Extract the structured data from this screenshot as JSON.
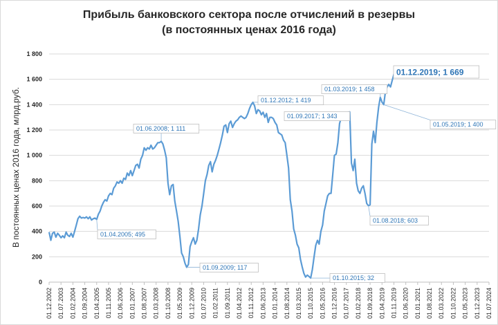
{
  "chart_data": {
    "type": "line",
    "title": [
      "Прибыль банковского сектора после отчислений в резервы",
      "(в постоянных ценах 2016 года)"
    ],
    "xlabel": "",
    "ylabel": "В постоянных ценах 2016 года, млрд.руб.",
    "ylim": [
      0,
      1800
    ],
    "yticks": [
      "0",
      "200",
      "400",
      "600",
      "800",
      "1 000",
      "1 200",
      "1 400",
      "1 600",
      "1 800"
    ],
    "grid": true,
    "color": "#5b9bd5",
    "xticks": [
      "01.12.2002",
      "01.07.2003",
      "01.02.2004",
      "01.09.2004",
      "01.04.2005",
      "01.11.2005",
      "01.06.2006",
      "01.01.2007",
      "01.08.2007",
      "01.03.2008",
      "01.10.2008",
      "01.05.2009",
      "01.12.2009",
      "01.07.2010",
      "01.02.2011",
      "01.09.2011",
      "01.04.2012",
      "01.11.2012",
      "01.06.2013",
      "01.01.2014",
      "01.08.2014",
      "01.03.2015",
      "01.10.2015",
      "01.05.2016",
      "01.12.2016",
      "01.07.2017",
      "01.02.2018",
      "01.09.2018",
      "01.04.2019",
      "01.11.2019",
      "01.06.2020",
      "01.01.2021",
      "01.08.2021",
      "01.03.2022",
      "01.10.2022",
      "01.05.2023",
      "01.12.2023",
      "01.07.2024"
    ],
    "series": [
      {
        "points": [
          [
            "2002-12",
            395
          ],
          [
            "2003-01",
            330
          ],
          [
            "2003-02",
            385
          ],
          [
            "2003-03",
            395
          ],
          [
            "2003-04",
            355
          ],
          [
            "2003-05",
            385
          ],
          [
            "2003-06",
            370
          ],
          [
            "2003-07",
            350
          ],
          [
            "2003-08",
            365
          ],
          [
            "2003-09",
            350
          ],
          [
            "2003-10",
            395
          ],
          [
            "2003-11",
            370
          ],
          [
            "2003-12",
            360
          ],
          [
            "2004-01",
            385
          ],
          [
            "2004-02",
            355
          ],
          [
            "2004-03",
            400
          ],
          [
            "2004-04",
            450
          ],
          [
            "2004-05",
            500
          ],
          [
            "2004-06",
            520
          ],
          [
            "2004-07",
            505
          ],
          [
            "2004-08",
            510
          ],
          [
            "2004-09",
            505
          ],
          [
            "2004-10",
            515
          ],
          [
            "2004-11",
            500
          ],
          [
            "2004-12",
            515
          ],
          [
            "2005-01",
            490
          ],
          [
            "2005-02",
            500
          ],
          [
            "2005-03",
            505
          ],
          [
            "2005-04",
            495
          ],
          [
            "2005-05",
            535
          ],
          [
            "2005-06",
            560
          ],
          [
            "2005-07",
            600
          ],
          [
            "2005-08",
            630
          ],
          [
            "2005-09",
            650
          ],
          [
            "2005-10",
            640
          ],
          [
            "2005-11",
            680
          ],
          [
            "2005-12",
            700
          ],
          [
            "2006-01",
            690
          ],
          [
            "2006-02",
            740
          ],
          [
            "2006-03",
            760
          ],
          [
            "2006-04",
            790
          ],
          [
            "2006-05",
            780
          ],
          [
            "2006-06",
            800
          ],
          [
            "2006-07",
            780
          ],
          [
            "2006-08",
            820
          ],
          [
            "2006-09",
            810
          ],
          [
            "2006-10",
            860
          ],
          [
            "2006-11",
            840
          ],
          [
            "2006-12",
            880
          ],
          [
            "2007-01",
            840
          ],
          [
            "2007-02",
            880
          ],
          [
            "2007-03",
            920
          ],
          [
            "2007-04",
            930
          ],
          [
            "2007-05",
            900
          ],
          [
            "2007-06",
            970
          ],
          [
            "2007-07",
            1000
          ],
          [
            "2007-08",
            1060
          ],
          [
            "2007-09",
            1040
          ],
          [
            "2007-10",
            1060
          ],
          [
            "2007-11",
            1050
          ],
          [
            "2007-12",
            1080
          ],
          [
            "2008-01",
            1050
          ],
          [
            "2008-02",
            1060
          ],
          [
            "2008-03",
            1080
          ],
          [
            "2008-04",
            1100
          ],
          [
            "2008-05",
            1100
          ],
          [
            "2008-06",
            1111
          ],
          [
            "2008-07",
            1090
          ],
          [
            "2008-08",
            1040
          ],
          [
            "2008-09",
            980
          ],
          [
            "2008-10",
            780
          ],
          [
            "2008-11",
            690
          ],
          [
            "2008-12",
            760
          ],
          [
            "2009-01",
            770
          ],
          [
            "2009-02",
            640
          ],
          [
            "2009-03",
            560
          ],
          [
            "2009-04",
            480
          ],
          [
            "2009-05",
            360
          ],
          [
            "2009-06",
            230
          ],
          [
            "2009-07",
            200
          ],
          [
            "2009-08",
            150
          ],
          [
            "2009-09",
            117
          ],
          [
            "2009-10",
            140
          ],
          [
            "2009-11",
            280
          ],
          [
            "2009-12",
            320
          ],
          [
            "2010-01",
            350
          ],
          [
            "2010-02",
            300
          ],
          [
            "2010-03",
            330
          ],
          [
            "2010-04",
            420
          ],
          [
            "2010-05",
            530
          ],
          [
            "2010-06",
            600
          ],
          [
            "2010-07",
            700
          ],
          [
            "2010-08",
            800
          ],
          [
            "2010-09",
            850
          ],
          [
            "2010-10",
            920
          ],
          [
            "2010-11",
            950
          ],
          [
            "2010-12",
            870
          ],
          [
            "2011-01",
            930
          ],
          [
            "2011-02",
            960
          ],
          [
            "2011-03",
            1000
          ],
          [
            "2011-04",
            1050
          ],
          [
            "2011-05",
            1100
          ],
          [
            "2011-06",
            1160
          ],
          [
            "2011-07",
            1230
          ],
          [
            "2011-08",
            1240
          ],
          [
            "2011-09",
            1180
          ],
          [
            "2011-10",
            1250
          ],
          [
            "2011-11",
            1270
          ],
          [
            "2011-12",
            1220
          ],
          [
            "2012-01",
            1250
          ],
          [
            "2012-02",
            1270
          ],
          [
            "2012-03",
            1280
          ],
          [
            "2012-04",
            1300
          ],
          [
            "2012-05",
            1310
          ],
          [
            "2012-06",
            1300
          ],
          [
            "2012-07",
            1290
          ],
          [
            "2012-08",
            1300
          ],
          [
            "2012-09",
            1330
          ],
          [
            "2012-10",
            1370
          ],
          [
            "2012-11",
            1400
          ],
          [
            "2012-12",
            1419
          ],
          [
            "2013-01",
            1390
          ],
          [
            "2013-02",
            1330
          ],
          [
            "2013-03",
            1360
          ],
          [
            "2013-04",
            1350
          ],
          [
            "2013-05",
            1320
          ],
          [
            "2013-06",
            1340
          ],
          [
            "2013-07",
            1300
          ],
          [
            "2013-08",
            1330
          ],
          [
            "2013-09",
            1260
          ],
          [
            "2013-10",
            1300
          ],
          [
            "2013-11",
            1300
          ],
          [
            "2013-12",
            1290
          ],
          [
            "2014-01",
            1260
          ],
          [
            "2014-02",
            1240
          ],
          [
            "2014-03",
            1180
          ],
          [
            "2014-04",
            1170
          ],
          [
            "2014-05",
            1160
          ],
          [
            "2014-06",
            1120
          ],
          [
            "2014-07",
            1100
          ],
          [
            "2014-08",
            1000
          ],
          [
            "2014-09",
            900
          ],
          [
            "2014-10",
            650
          ],
          [
            "2014-11",
            560
          ],
          [
            "2014-12",
            420
          ],
          [
            "2015-01",
            370
          ],
          [
            "2015-02",
            300
          ],
          [
            "2015-03",
            270
          ],
          [
            "2015-04",
            180
          ],
          [
            "2015-05",
            120
          ],
          [
            "2015-06",
            70
          ],
          [
            "2015-07",
            40
          ],
          [
            "2015-08",
            55
          ],
          [
            "2015-09",
            45
          ],
          [
            "2015-10",
            32
          ],
          [
            "2015-11",
            100
          ],
          [
            "2015-12",
            200
          ],
          [
            "2016-01",
            290
          ],
          [
            "2016-02",
            330
          ],
          [
            "2016-03",
            300
          ],
          [
            "2016-04",
            400
          ],
          [
            "2016-05",
            450
          ],
          [
            "2016-06",
            560
          ],
          [
            "2016-07",
            620
          ],
          [
            "2016-08",
            680
          ],
          [
            "2016-09",
            700
          ],
          [
            "2016-10",
            700
          ],
          [
            "2016-11",
            850
          ],
          [
            "2016-12",
            1000
          ],
          [
            "2017-01",
            1010
          ],
          [
            "2017-02",
            1100
          ],
          [
            "2017-03",
            1250
          ],
          [
            "2017-04",
            1300
          ],
          [
            "2017-05",
            1280
          ],
          [
            "2017-06",
            1330
          ],
          [
            "2017-07",
            1300
          ],
          [
            "2017-08",
            1340
          ],
          [
            "2017-09",
            1343
          ],
          [
            "2017-10",
            940
          ],
          [
            "2017-11",
            880
          ],
          [
            "2017-12",
            970
          ],
          [
            "2018-01",
            780
          ],
          [
            "2018-02",
            720
          ],
          [
            "2018-03",
            700
          ],
          [
            "2018-04",
            740
          ],
          [
            "2018-05",
            760
          ],
          [
            "2018-06",
            700
          ],
          [
            "2018-07",
            620
          ],
          [
            "2018-08",
            603
          ],
          [
            "2018-09",
            610
          ],
          [
            "2018-10",
            1090
          ],
          [
            "2018-11",
            1190
          ],
          [
            "2018-12",
            1100
          ],
          [
            "2019-01",
            1260
          ],
          [
            "2019-02",
            1380
          ],
          [
            "2019-03",
            1458
          ],
          [
            "2019-04",
            1420
          ],
          [
            "2019-05",
            1400
          ],
          [
            "2019-06",
            1500
          ],
          [
            "2019-07",
            1540
          ],
          [
            "2019-08",
            1560
          ],
          [
            "2019-09",
            1540
          ],
          [
            "2019-10",
            1590
          ],
          [
            "2019-11",
            1640
          ],
          [
            "2019-12",
            1669
          ]
        ]
      }
    ],
    "annotations": [
      {
        "text": "01.04.2005; 495",
        "date": "2005-04",
        "value": 495
      },
      {
        "text": "01.06.2008; 1 111",
        "date": "2008-06",
        "value": 1111
      },
      {
        "text": "01.09.2009; 117",
        "date": "2009-09",
        "value": 117
      },
      {
        "text": "01.12.2012; 1 419",
        "date": "2012-12",
        "value": 1419
      },
      {
        "text": "01.10.2015; 32",
        "date": "2015-10",
        "value": 32
      },
      {
        "text": "01.09.2017; 1 343",
        "date": "2017-09",
        "value": 1343
      },
      {
        "text": "01.08.2018; 603",
        "date": "2018-08",
        "value": 603
      },
      {
        "text": "01.03.2019; 1 458",
        "date": "2019-03",
        "value": 1458
      },
      {
        "text": "01.05.2019; 1 400",
        "date": "2019-05",
        "value": 1400
      },
      {
        "text": "01.12.2019; 1 669",
        "date": "2019-12",
        "value": 1669,
        "emphasis": true
      }
    ]
  }
}
